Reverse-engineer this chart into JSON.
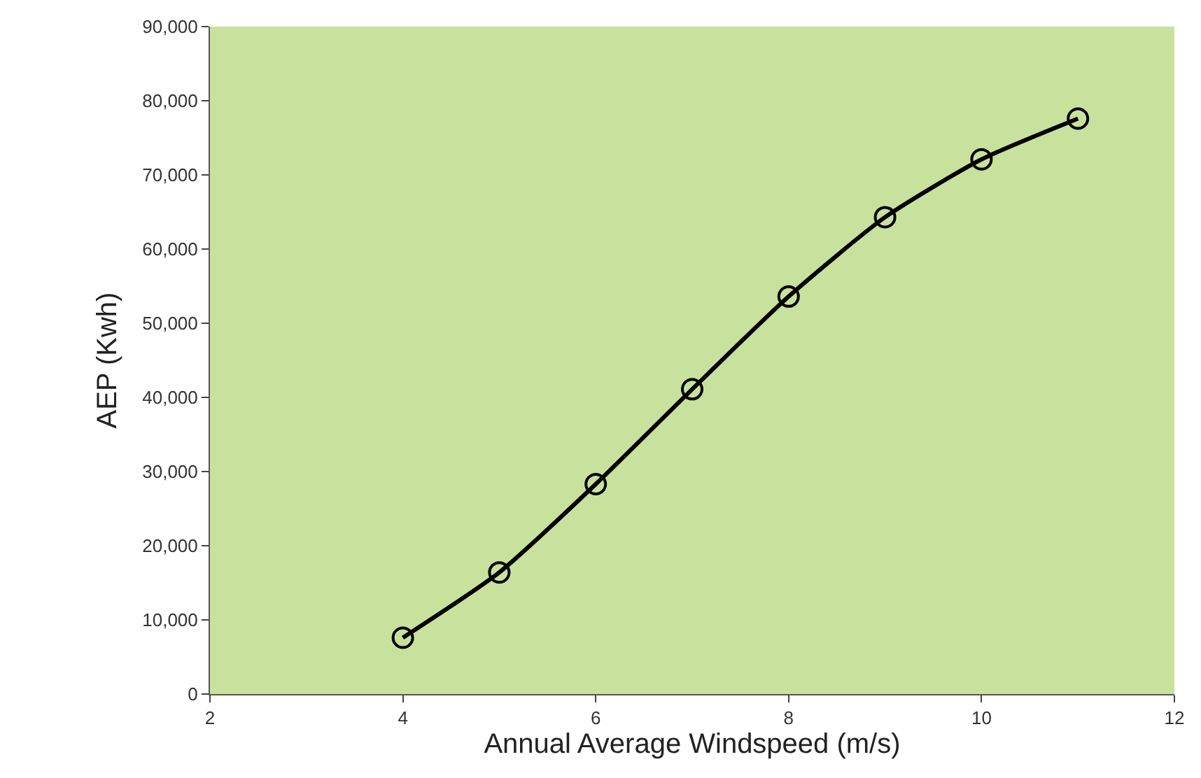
{
  "chart_data": {
    "type": "line",
    "xlabel": "Annual Average Windspeed (m/s)",
    "ylabel": "AEP (Kwh)",
    "x": [
      4,
      5,
      6,
      7,
      8,
      9,
      10,
      11
    ],
    "series": [
      {
        "color": "#000000",
        "values": [
          7600,
          16400,
          28300,
          41100,
          53600,
          64300,
          72100,
          77600
        ]
      }
    ],
    "xlim": [
      2,
      12
    ],
    "xticks": [
      2,
      4,
      6,
      8,
      10,
      12
    ],
    "ylim": [
      0,
      90000
    ],
    "yticks": [
      {
        "value": 0,
        "label": "0"
      },
      {
        "value": 10000,
        "label": "10,000"
      },
      {
        "value": 20000,
        "label": "20,000"
      },
      {
        "value": 30000,
        "label": "30,000"
      },
      {
        "value": 40000,
        "label": "40,000"
      },
      {
        "value": 50000,
        "label": "50,000"
      },
      {
        "value": 60000,
        "label": "60,000"
      },
      {
        "value": 70000,
        "label": "70,000"
      },
      {
        "value": 80000,
        "label": "80,000"
      },
      {
        "value": 90000,
        "label": "90,000"
      }
    ],
    "marker": "circle",
    "line_style": "solid",
    "grid": false
  }
}
